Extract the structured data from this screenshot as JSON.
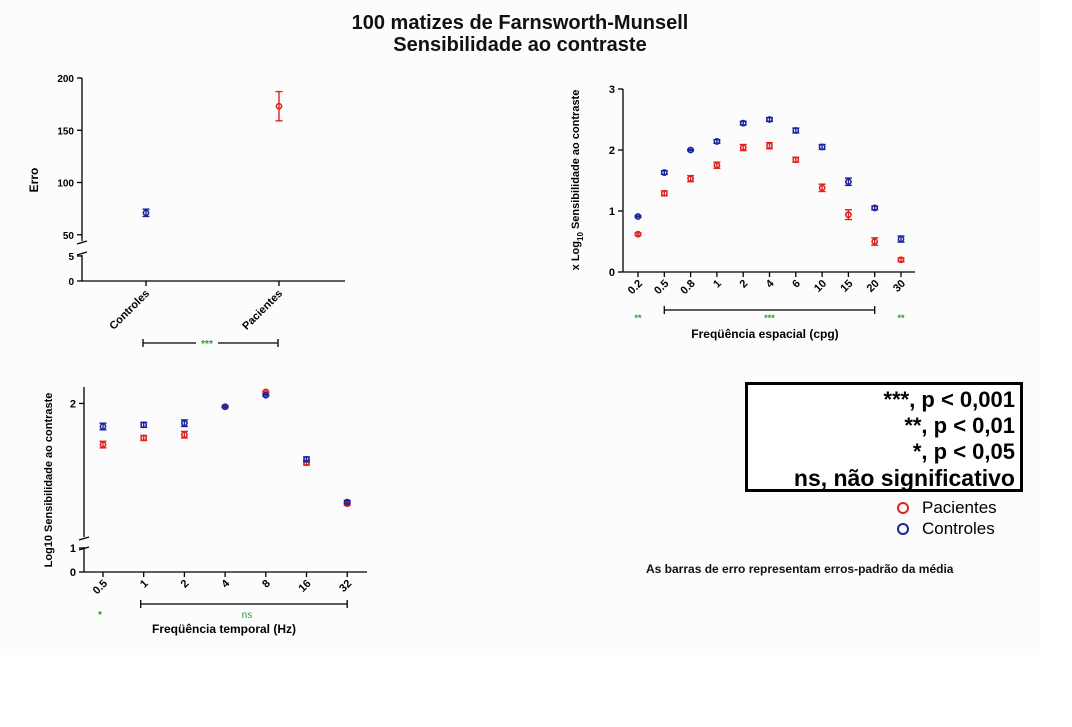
{
  "title_line1": "100 matizes de Farnsworth-Munsell",
  "title_line2": "Sensibilidade ao contraste",
  "colors": {
    "patients": "#e0221e",
    "controls": "#1b239c",
    "significance": "#2a9a2a",
    "axis": "#000000"
  },
  "legend": {
    "sig_levels": [
      "***, p < 0,001",
      "**, p < 0,01",
      "*, p < 0,05",
      "ns, não significativo"
    ],
    "series": [
      {
        "label": "Pacientes",
        "color": "#e0221e"
      },
      {
        "label": "Controles",
        "color": "#1b239c"
      }
    ]
  },
  "note": "As barras de erro representam erros-padrão da média",
  "chart_data": [
    {
      "type": "scatter",
      "title": "",
      "ylabel": "Erro",
      "xlabel": "",
      "categories": [
        "Controles",
        "Pacientes"
      ],
      "axis_break": {
        "lower": [
          0,
          5
        ],
        "upper": [
          45,
          200
        ]
      },
      "yticks": [
        0,
        5,
        50,
        100,
        150,
        200
      ],
      "series": [
        {
          "name": "Controles",
          "points": [
            {
              "x": "Controles",
              "y": 71,
              "err": 3.5
            }
          ]
        },
        {
          "name": "Pacientes",
          "points": [
            {
              "x": "Pacientes",
              "y": 173,
              "err": 14
            }
          ]
        }
      ],
      "significance": [
        {
          "from": "Controles",
          "to": "Pacientes",
          "label": "***"
        }
      ]
    },
    {
      "type": "scatter",
      "title": "",
      "ylabel_parts": [
        "x Log",
        "10",
        " Sensibilidade ao contraste"
      ],
      "xlabel": "Freqüência espacial (cpg)",
      "categories": [
        "0.2",
        "0.5",
        "0.8",
        "1",
        "2",
        "4",
        "6",
        "10",
        "15",
        "20",
        "30"
      ],
      "ylim": [
        0,
        3
      ],
      "yticks": [
        "0",
        "1",
        "2",
        "3"
      ],
      "series": [
        {
          "name": "Pacientes",
          "values": [
            0.62,
            1.29,
            1.53,
            1.75,
            2.04,
            2.07,
            1.84,
            1.38,
            0.94,
            0.5,
            0.2
          ],
          "errors": [
            0.02,
            0.04,
            0.05,
            0.05,
            0.05,
            0.05,
            0.04,
            0.06,
            0.08,
            0.06,
            0.03
          ]
        },
        {
          "name": "Controles",
          "values": [
            0.91,
            1.63,
            2.0,
            2.14,
            2.44,
            2.5,
            2.32,
            2.05,
            1.48,
            1.05,
            0.54
          ],
          "errors": [
            0.01,
            0.03,
            0.01,
            0.03,
            0.03,
            0.03,
            0.04,
            0.04,
            0.06,
            0.03,
            0.05
          ]
        }
      ],
      "significance": [
        {
          "from": "0.2",
          "to": "0.2",
          "label": "**",
          "bar": false
        },
        {
          "from": "0.5",
          "to": "20",
          "label": "***",
          "bar": true
        },
        {
          "from": "30",
          "to": "30",
          "label": "**",
          "bar": false
        }
      ]
    },
    {
      "type": "scatter",
      "title": "",
      "ylabel": "Log10 Sensibilidade ao contraste",
      "xlabel": "Freqüência temporal (Hz)",
      "categories": [
        "0.5",
        "1",
        "2",
        "4",
        "8",
        "16",
        "32"
      ],
      "axis_break": {
        "lower": [
          0,
          1
        ],
        "upper": [
          1.2,
          2.1
        ]
      },
      "yticks": [
        "0",
        "1",
        "2"
      ],
      "series": [
        {
          "name": "Pacientes",
          "values": [
            1.75,
            1.79,
            1.81,
            1.98,
            2.07,
            1.64,
            1.39
          ],
          "errors": [
            0.02,
            0.015,
            0.02,
            0.005,
            0.005,
            0.015,
            0.01
          ]
        },
        {
          "name": "Controles",
          "values": [
            1.86,
            1.87,
            1.88,
            1.98,
            2.05,
            1.66,
            1.4
          ],
          "errors": [
            0.02,
            0.015,
            0.02,
            0.005,
            0.005,
            0.015,
            0.01
          ]
        }
      ],
      "significance": [
        {
          "from": "0.5",
          "to": "0.5",
          "label": "*",
          "bar": false
        },
        {
          "from": "1",
          "to": "32",
          "label": "ns",
          "bar": true
        }
      ]
    }
  ]
}
